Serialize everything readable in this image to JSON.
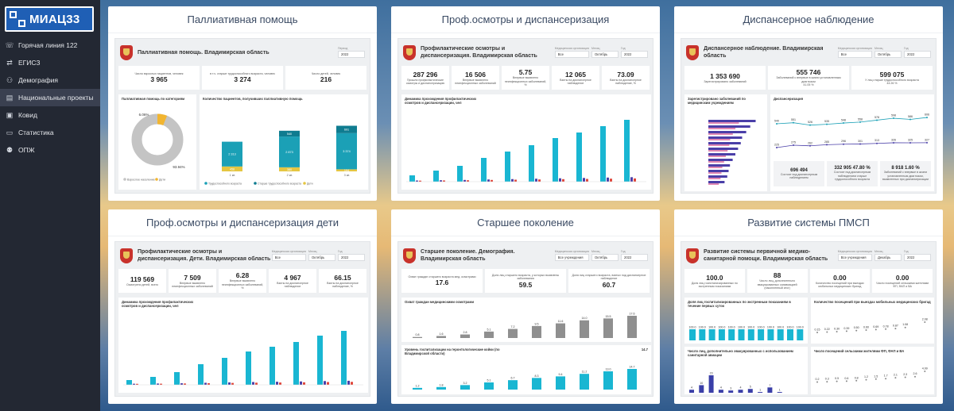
{
  "sidebar": {
    "logo": "МИАЦ33",
    "items": [
      {
        "label": "Горячая линия 122",
        "icon": "phone-icon",
        "glyph": "☏"
      },
      {
        "label": "ЕГИСЗ",
        "icon": "network-icon",
        "glyph": "⇄"
      },
      {
        "label": "Демография",
        "icon": "people-icon",
        "glyph": "⚇"
      },
      {
        "label": "Национальные проекты",
        "icon": "clipboard-icon",
        "glyph": "▤"
      },
      {
        "label": "Ковид",
        "icon": "virus-icon",
        "glyph": "▣"
      },
      {
        "label": "Статистика",
        "icon": "monitor-icon",
        "glyph": "▭"
      },
      {
        "label": "ОПЖ",
        "icon": "family-icon",
        "glyph": "⚉"
      }
    ],
    "active_index": 3
  },
  "cards": {
    "palliative": {
      "title": "Паллиативная помощь",
      "dash_title": "Паллиативная помощь. Владимирская область",
      "filter_label": "Период",
      "filter_value": "2022",
      "kpis": [
        {
          "label": "Число взрослых пациентов, человек",
          "value": "3 965"
        },
        {
          "label": "в т.ч. старше трудоспособного возраста, человек",
          "value": "3 274"
        },
        {
          "label": "Число детей, человек",
          "value": "216"
        }
      ],
      "donut_title": "Паллиативная помощь по категориям",
      "donut_small": "6.06%",
      "donut_big": "93.94%",
      "donut_legend": [
        "Взрослое население",
        "Дети"
      ],
      "bars_title": "Количество пациентов, получивших паллиативную помощь",
      "bars_legend": [
        "Трудоспособного возраста",
        "Старше трудоспособного возраста",
        "Дети"
      ],
      "bar_labels": [
        "1 кв",
        "2 кв",
        "3 кв"
      ],
      "bar_top": [
        "",
        "540",
        "691"
      ],
      "bar_mid": [
        "2 313",
        "2 873",
        "3 374"
      ],
      "bar_low": [
        "458",
        "380",
        "194"
      ]
    },
    "profosmotr": {
      "title": "Проф.осмотры и диспансеризация",
      "dash_title": "Профилактические осмотры и диспансеризация. Владимирская область",
      "filters": [
        {
          "label": "Медицинская организация",
          "value": "Все"
        },
        {
          "label": "Месяц",
          "value": "Октябрь"
        },
        {
          "label": "Год",
          "value": "2022"
        }
      ],
      "kpis": [
        {
          "label": "Прошли профилактические осмотры и диспансеризацию",
          "value": "287 296"
        },
        {
          "label": "Впервые выявлено неинфекционных заболеваний",
          "value": "16 506"
        },
        {
          "label": "Впервые выявлено неинфекционных заболеваний, %",
          "value": "5.75"
        },
        {
          "label": "Взяты на диспансерное наблюдение",
          "value": "12 065"
        },
        {
          "label": "Взяты на диспансерное наблюдение, %",
          "value": "73.09"
        }
      ],
      "chart_title": "Динамика прохождения профилактических осмотров и диспансеризации, чел"
    },
    "dispanser": {
      "title": "Диспансерное наблюдение",
      "dash_title": "Диспансерное наблюдение. Владимирская область",
      "filters": [
        {
          "label": "Медицинская организация",
          "value": "Все"
        },
        {
          "label": "Месяц",
          "value": "Октябрь"
        },
        {
          "label": "Год",
          "value": "2022"
        }
      ],
      "kpis": [
        {
          "label": "Зарегистрировано заболеваний",
          "value": "1 353 690"
        },
        {
          "label": "Заболеваний с впервые в жизни установленным диагнозом",
          "value": "555 746",
          "pct": "41.05 %"
        },
        {
          "label": "У лиц старше трудоспособного возраста",
          "value": "599 075",
          "pct": "44.26 %"
        }
      ],
      "left_title": "Зарегистрировано заболеваний по медицинским учреждениям",
      "right_title": "Диспансеризация",
      "line_top": [
        "540",
        "551",
        "526",
        "535",
        "548",
        "558",
        "578",
        "598",
        "586",
        "606"
      ],
      "line_bottom": [
        "225",
        "275",
        "262",
        "285",
        "296",
        "301",
        "313",
        "326",
        "325",
        "327"
      ],
      "bottom_kpis": [
        {
          "value": "696 494",
          "label": "Состоят под диспансерным наблюдением"
        },
        {
          "value": "332 905",
          "pct": "47.80 %",
          "label": "Состоят под диспансерным наблюдением старше трудоспособного возраста"
        },
        {
          "value": "8 918",
          "pct": "1.60 %",
          "label": "Заболеваний с впервые в жизни установленным диагнозом, выявленных при диспансеризации"
        }
      ]
    },
    "children": {
      "title": "Проф.осмотры и диспансеризация дети",
      "dash_title": "Профилактические осмотры и диспансеризация. Дети. Владимирская область",
      "filters": [
        {
          "label": "Медицинская организация",
          "value": "Все"
        },
        {
          "label": "Месяц",
          "value": "Октябрь"
        },
        {
          "label": "Год",
          "value": "2022"
        }
      ],
      "kpis": [
        {
          "label": "Осмотрено детей, всего",
          "value": "119 569"
        },
        {
          "label": "Впервые выявлено неинфекционных заболеваний",
          "value": "7 509"
        },
        {
          "label": "Впервые выявлено неинфекционных заболеваний, %",
          "value": "6.28"
        },
        {
          "label": "Взяты на диспансерное наблюдение",
          "value": "4 967"
        },
        {
          "label": "Взяты на диспансерное наблюдение, %",
          "value": "66.15"
        }
      ],
      "chart_title": "Динамика прохождения профилактических осмотров и диспансеризации, чел"
    },
    "senior": {
      "title": "Старшее поколение",
      "dash_title": "Старшее поколение. Демография. Владимирская область",
      "filters": [
        {
          "label": "Медицинская организация",
          "value": "Все учреждения"
        },
        {
          "label": "Месяц",
          "value": "Октябрь"
        },
        {
          "label": "Год",
          "value": "2022"
        }
      ],
      "kpis": [
        {
          "label": "Охват граждан старшего возраста мед. осмотрами",
          "value": "17.6"
        },
        {
          "label": "Доля лиц старшего возраста, у которых выявлены заболевания",
          "value": "59.5"
        },
        {
          "label": "Доля лиц старшего возраста, взятых под диспансерное наблюдение",
          "value": "60.7"
        }
      ],
      "top_title": "Охват граждан медицинскими осмотрами",
      "top_values": [
        "0.8",
        "1.6",
        "2.8",
        "5.1",
        "7.2",
        "9.5",
        "11.6",
        "14.0",
        "15.5",
        "17.6"
      ],
      "bottom_title": "Уровень госпитализации на геронтологические койки (по Владимирской области)",
      "bottom_head": "14.7",
      "bottom_values": [
        "1.2",
        "1.8",
        "3.2",
        "5.1",
        "6.7",
        "8.3",
        "9.4",
        "11.2",
        "13.0",
        "14.7"
      ]
    },
    "pmsp": {
      "title": "Развитие системы ПМСП",
      "dash_title": "Развитие системы первичной медико-санитарной помощи. Владимирская область",
      "filters": [
        {
          "label": "Медицинская организация",
          "value": "Все учреждения"
        },
        {
          "label": "Месяц",
          "value": "Декабрь"
        },
        {
          "label": "Год",
          "value": "2022"
        }
      ],
      "kpis": [
        {
          "label": "Доля лиц госпитализированных по экстренным показаниям",
          "value": "100.0"
        },
        {
          "label": "Число лиц, дополнительно эвакуированных санавиацией (накопленный итог)",
          "value": "88"
        },
        {
          "label": "Количество посещений при выездах мобильных медицинских бригад",
          "value": "0.00"
        },
        {
          "label": "Число посещений сельскими жителями ФП, ФАП и ВА",
          "value": "0.00"
        }
      ],
      "p1_title": "Доля лиц госпитализированных по экстренным показаниям в течение первых суток",
      "p1_values": [
        "100.0",
        "100.0",
        "100.0",
        "100.0",
        "100.0",
        "100.0",
        "100.0",
        "100.0",
        "100.0",
        "100.0",
        "100.0",
        "100.0"
      ],
      "p2_title": "Количество посещений при выездах мобильных медицинских бригад",
      "p2_values": [
        "0.15",
        "0.22",
        "0.30",
        "0.39",
        "0.50",
        "0.60",
        "0.69",
        "0.78",
        "0.87",
        "1.08",
        "",
        "2.08"
      ],
      "p3_title": "Число лиц, дополнительно эвакуированных с использованием санитарной авиации",
      "p3_values": [
        "4",
        "10",
        "23",
        "4",
        "3",
        "4",
        "5",
        "1",
        "7",
        "1",
        "",
        ""
      ],
      "p4_title": "Число посещений сельскими жителями ФП, ФАП и ВА",
      "p4_values": [
        "0.2",
        "0.3",
        "0.5",
        "0.6",
        "0.8",
        "1.2",
        "1.5",
        "1.7",
        "2.1",
        "2.3",
        "2.6",
        "4.99"
      ]
    }
  }
}
